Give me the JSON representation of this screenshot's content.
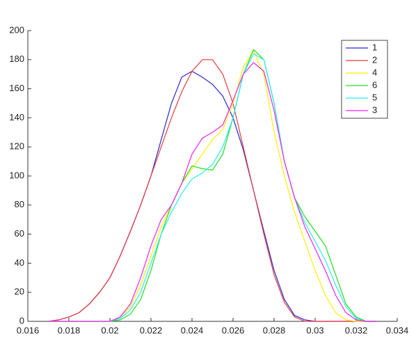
{
  "chart_data": {
    "type": "line",
    "x": [
      0.017,
      0.0175,
      0.018,
      0.0185,
      0.019,
      0.0195,
      0.02,
      0.0205,
      0.021,
      0.0215,
      0.022,
      0.0225,
      0.023,
      0.0235,
      0.024,
      0.0245,
      0.025,
      0.0255,
      0.026,
      0.0265,
      0.027,
      0.0275,
      0.028,
      0.0285,
      0.029,
      0.0295,
      0.03,
      0.0305,
      0.031,
      0.0315,
      0.032,
      0.0325,
      0.033
    ],
    "series": [
      {
        "name": "1",
        "color": "#2828d0",
        "values": [
          0,
          1,
          3,
          6,
          12,
          20,
          30,
          45,
          62,
          80,
          100,
          125,
          150,
          168,
          172,
          168,
          163,
          155,
          140,
          118,
          90,
          62,
          35,
          15,
          4,
          1,
          0,
          0,
          0,
          0,
          0,
          0,
          0
        ]
      },
      {
        "name": "2",
        "color": "#e83a3a",
        "values": [
          0,
          1,
          3,
          6,
          12,
          20,
          30,
          45,
          62,
          80,
          100,
          120,
          140,
          158,
          172,
          180,
          180,
          170,
          150,
          120,
          90,
          60,
          32,
          13,
          3,
          0,
          0,
          0,
          0,
          0,
          0,
          0,
          0
        ]
      },
      {
        "name": "4",
        "color": "#ffee00",
        "values": [
          0,
          0,
          0,
          0,
          0,
          0,
          0,
          3,
          10,
          25,
          45,
          65,
          80,
          95,
          105,
          115,
          125,
          132,
          150,
          175,
          186,
          170,
          130,
          100,
          75,
          55,
          35,
          18,
          6,
          1,
          0,
          0,
          0
        ]
      },
      {
        "name": "6",
        "color": "#22dd22",
        "values": [
          0,
          0,
          0,
          0,
          0,
          0,
          0,
          1,
          5,
          15,
          35,
          60,
          80,
          95,
          107,
          105,
          104,
          115,
          140,
          170,
          187,
          180,
          150,
          110,
          85,
          72,
          62,
          52,
          32,
          12,
          3,
          0,
          0
        ]
      },
      {
        "name": "5",
        "color": "#22eeee",
        "values": [
          0,
          0,
          0,
          0,
          0,
          0,
          0,
          2,
          8,
          20,
          40,
          60,
          75,
          88,
          98,
          102,
          108,
          120,
          140,
          170,
          184,
          180,
          150,
          110,
          85,
          68,
          55,
          42,
          25,
          10,
          2,
          0,
          0
        ]
      },
      {
        "name": "3",
        "color": "#f020f0",
        "values": [
          0,
          0,
          0,
          0,
          0,
          0,
          0,
          3,
          12,
          30,
          52,
          70,
          80,
          95,
          115,
          126,
          130,
          135,
          152,
          170,
          178,
          172,
          145,
          110,
          85,
          65,
          50,
          35,
          18,
          6,
          1,
          0,
          0
        ]
      }
    ],
    "xlim": [
      0.016,
      0.034
    ],
    "xticks": [
      0.016,
      0.018,
      0.02,
      0.022,
      0.024,
      0.026,
      0.028,
      0.03,
      0.032,
      0.034
    ],
    "ylim": [
      0,
      200
    ],
    "yticks": [
      0,
      20,
      40,
      60,
      80,
      100,
      120,
      140,
      160,
      180,
      200
    ],
    "grid": false,
    "legend": "top-right"
  }
}
